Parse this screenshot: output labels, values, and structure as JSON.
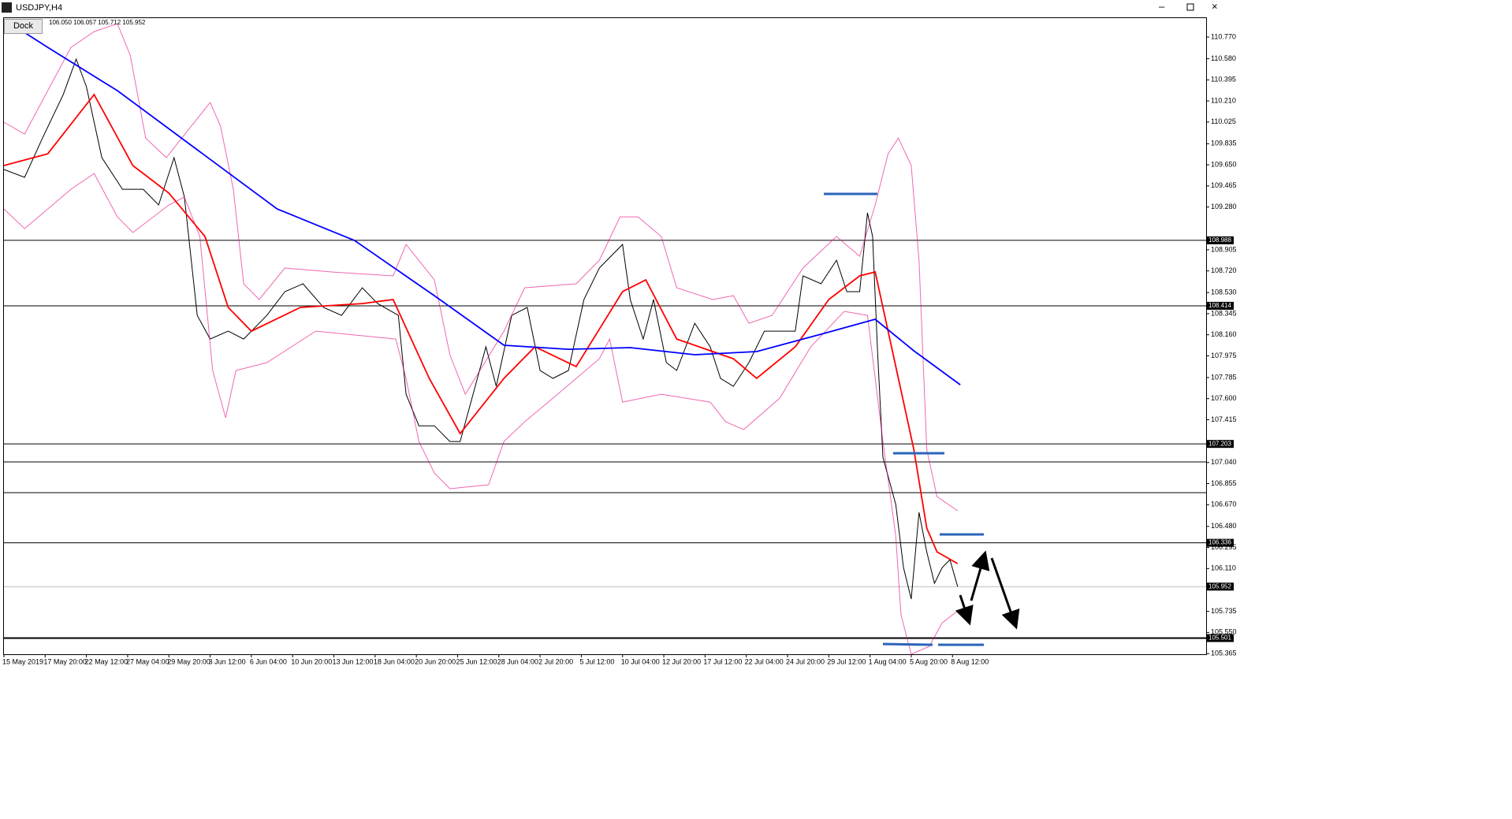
{
  "window": {
    "title": "USDJPY,H4",
    "dock": "Dock"
  },
  "chart_data": {
    "type": "line",
    "subtitle": "106.050 106.057 105.712 105.952",
    "xlim": [
      0,
      466.4
    ],
    "ylim": [
      105.359,
      110.943
    ],
    "xticks": [
      {
        "value": 0,
        "label": "15 May 2019"
      },
      {
        "value": 16,
        "label": "17 May 20:00"
      },
      {
        "value": 32,
        "label": "22 May 12:00"
      },
      {
        "value": 48,
        "label": "27 May 04:00"
      },
      {
        "value": 64,
        "label": "29 May 20:00"
      },
      {
        "value": 80,
        "label": "3 Jun 12:00"
      },
      {
        "value": 96,
        "label": "6 Jun 04:00"
      },
      {
        "value": 112,
        "label": "10 Jun 20:00"
      },
      {
        "value": 128,
        "label": "13 Jun 12:00"
      },
      {
        "value": 144,
        "label": "18 Jun 04:00"
      },
      {
        "value": 160,
        "label": "20 Jun 20:00"
      },
      {
        "value": 176,
        "label": "25 Jun 12:00"
      },
      {
        "value": 192,
        "label": "28 Jun 04:00"
      },
      {
        "value": 208,
        "label": "2 Jul 20:00"
      },
      {
        "value": 224,
        "label": "5 Jul 12:00"
      },
      {
        "value": 240,
        "label": "10 Jul 04:00"
      },
      {
        "value": 256,
        "label": "12 Jul 20:00"
      },
      {
        "value": 272,
        "label": "17 Jul 12:00"
      },
      {
        "value": 288,
        "label": "22 Jul 04:00"
      },
      {
        "value": 304,
        "label": "24 Jul 20:00"
      },
      {
        "value": 320,
        "label": "29 Jul 12:00"
      },
      {
        "value": 336,
        "label": "1 Aug 04:00"
      },
      {
        "value": 352,
        "label": "5 Aug 20:00"
      },
      {
        "value": 368,
        "label": "8 Aug 12:00"
      }
    ],
    "yticks": [
      {
        "value": 110.77,
        "label": "110.770"
      },
      {
        "value": 110.58,
        "label": "110.580"
      },
      110.395,
      {
        "value": 110.21,
        "label": "110.210"
      },
      110.025,
      109.835,
      {
        "value": 109.65,
        "label": "109.650"
      },
      109.465,
      {
        "value": 109.28,
        "label": "109.280"
      },
      {
        "value": 108.905,
        "label": "108.905"
      },
      {
        "value": 108.72,
        "label": "108.720"
      },
      {
        "value": 108.53,
        "label": "108.530"
      },
      108.345,
      {
        "value": 108.16,
        "label": "108.160"
      },
      107.975,
      107.785,
      {
        "value": 107.6,
        "label": "107.600"
      },
      107.415,
      {
        "value": 107.04,
        "label": "107.040"
      },
      106.855,
      {
        "value": 106.67,
        "label": "106.670"
      },
      {
        "value": 106.48,
        "label": "106.480"
      },
      106.295,
      {
        "value": 106.11,
        "label": "106.110"
      },
      105.735,
      {
        "value": 105.55,
        "label": "105.550"
      },
      105.365
    ],
    "labeled_levels": [
      108.988,
      108.414,
      107.203,
      106.336,
      105.952,
      105.501
    ],
    "unlabeled_levels": [
      107.045,
      106.776
    ],
    "level_color": "#000000",
    "series": [
      {
        "color": "#000000",
        "x": [
          0,
          8,
          15,
          23,
          28,
          32,
          38,
          46,
          54,
          60,
          66,
          70,
          75,
          80,
          87,
          93,
          102,
          109,
          116,
          124,
          131,
          139,
          145,
          153,
          156,
          161,
          167,
          173,
          177,
          182,
          187,
          191,
          197,
          203,
          208,
          213,
          219,
          225,
          231,
          240,
          243,
          248,
          252,
          257,
          261,
          268,
          274,
          278,
          283,
          289,
          295,
          301,
          307,
          310,
          317,
          323,
          327,
          332,
          335,
          337,
          339,
          341,
          346,
          349,
          352,
          355,
          358,
          361,
          364,
          367,
          370
        ],
        "values": [
          109.609,
          109.54,
          109.886,
          110.266,
          110.577,
          110.335,
          109.713,
          109.436,
          109.436,
          109.298,
          109.713,
          109.367,
          108.33,
          108.123,
          108.192,
          108.123,
          108.33,
          108.538,
          108.607,
          108.4,
          108.33,
          108.572,
          108.434,
          108.33,
          107.639,
          107.362,
          107.362,
          107.224,
          107.224,
          107.639,
          108.054,
          107.708,
          108.33,
          108.4,
          107.847,
          107.778,
          107.847,
          108.469,
          108.745,
          108.952,
          108.469,
          108.123,
          108.469,
          107.916,
          107.847,
          108.261,
          108.054,
          107.778,
          107.708,
          107.916,
          108.192,
          108.192,
          108.192,
          108.676,
          108.607,
          108.814,
          108.538,
          108.538,
          109.229,
          109.022,
          107.985,
          107.087,
          106.672,
          106.119,
          105.843,
          106.603,
          106.257,
          105.981,
          106.119,
          106.188,
          105.952
        ]
      },
      {
        "color": "#e6007e",
        "x": [
          0,
          8,
          17,
          26,
          35,
          44,
          49,
          55,
          63,
          69,
          80,
          84,
          89,
          93,
          99,
          109,
          127,
          151,
          156,
          167,
          173,
          179,
          194,
          202,
          222,
          231,
          239,
          246,
          255,
          261,
          275,
          283,
          289,
          298,
          310,
          323,
          332,
          338,
          343,
          347,
          352,
          355,
          358,
          362,
          370
        ],
        "values": [
          110.024,
          109.92,
          110.3,
          110.68,
          110.818,
          110.887,
          110.611,
          109.885,
          109.713,
          109.885,
          110.196,
          109.989,
          109.436,
          108.607,
          108.469,
          108.745,
          108.711,
          108.676,
          108.952,
          108.641,
          107.985,
          107.639,
          108.192,
          108.572,
          108.607,
          108.814,
          109.194,
          109.194,
          109.022,
          108.572,
          108.469,
          108.503,
          108.261,
          108.33,
          108.745,
          109.022,
          108.849,
          109.298,
          109.747,
          109.885,
          109.644,
          108.814,
          107.156,
          106.741,
          106.617
        ]
      },
      {
        "color": "#e6007e",
        "x": [
          0,
          8,
          17,
          26,
          35,
          44,
          50,
          64,
          70,
          76,
          81,
          86,
          90,
          102,
          121,
          152,
          156,
          161,
          167,
          173,
          188,
          194,
          202,
          213,
          231,
          235,
          240,
          255,
          274,
          280,
          287,
          301,
          313,
          326,
          335,
          341,
          346,
          348,
          352,
          359,
          364,
          370
        ],
        "values": [
          109.263,
          109.091,
          109.263,
          109.436,
          109.574,
          109.194,
          109.056,
          109.298,
          109.367,
          109.022,
          107.847,
          107.432,
          107.847,
          107.916,
          108.192,
          108.123,
          107.778,
          107.225,
          106.948,
          106.81,
          106.845,
          107.225,
          107.397,
          107.605,
          107.95,
          108.123,
          107.57,
          107.639,
          107.57,
          107.397,
          107.329,
          107.605,
          108.054,
          108.365,
          108.33,
          107.225,
          106.396,
          105.705,
          105.359,
          105.428,
          105.635,
          105.739
        ]
      },
      {
        "color": "#ff0000",
        "x": [
          0,
          17,
          35,
          50,
          64,
          78,
          87,
          96,
          115,
          139,
          151,
          165,
          177,
          194,
          206,
          222,
          240,
          249,
          261,
          283,
          292,
          307,
          320,
          332,
          338,
          347,
          353,
          358,
          362,
          370
        ],
        "values": [
          109.644,
          109.747,
          110.266,
          109.644,
          109.402,
          109.022,
          108.4,
          108.192,
          108.4,
          108.434,
          108.469,
          107.778,
          107.294,
          107.778,
          108.054,
          107.881,
          108.538,
          108.641,
          108.123,
          107.95,
          107.778,
          108.054,
          108.469,
          108.676,
          108.711,
          107.778,
          107.156,
          106.465,
          106.257,
          106.154
        ]
      },
      {
        "color": "#0000ff",
        "x": [
          5,
          17,
          44,
          75,
          106,
          136,
          167,
          194,
          219,
          243,
          268,
          292,
          317,
          338,
          353,
          371
        ],
        "values": [
          110.853,
          110.68,
          110.3,
          109.782,
          109.263,
          108.987,
          108.503,
          108.068,
          108.033,
          108.047,
          107.985,
          108.013,
          108.165,
          108.296,
          108.02,
          107.722
        ]
      }
    ]
  }
}
